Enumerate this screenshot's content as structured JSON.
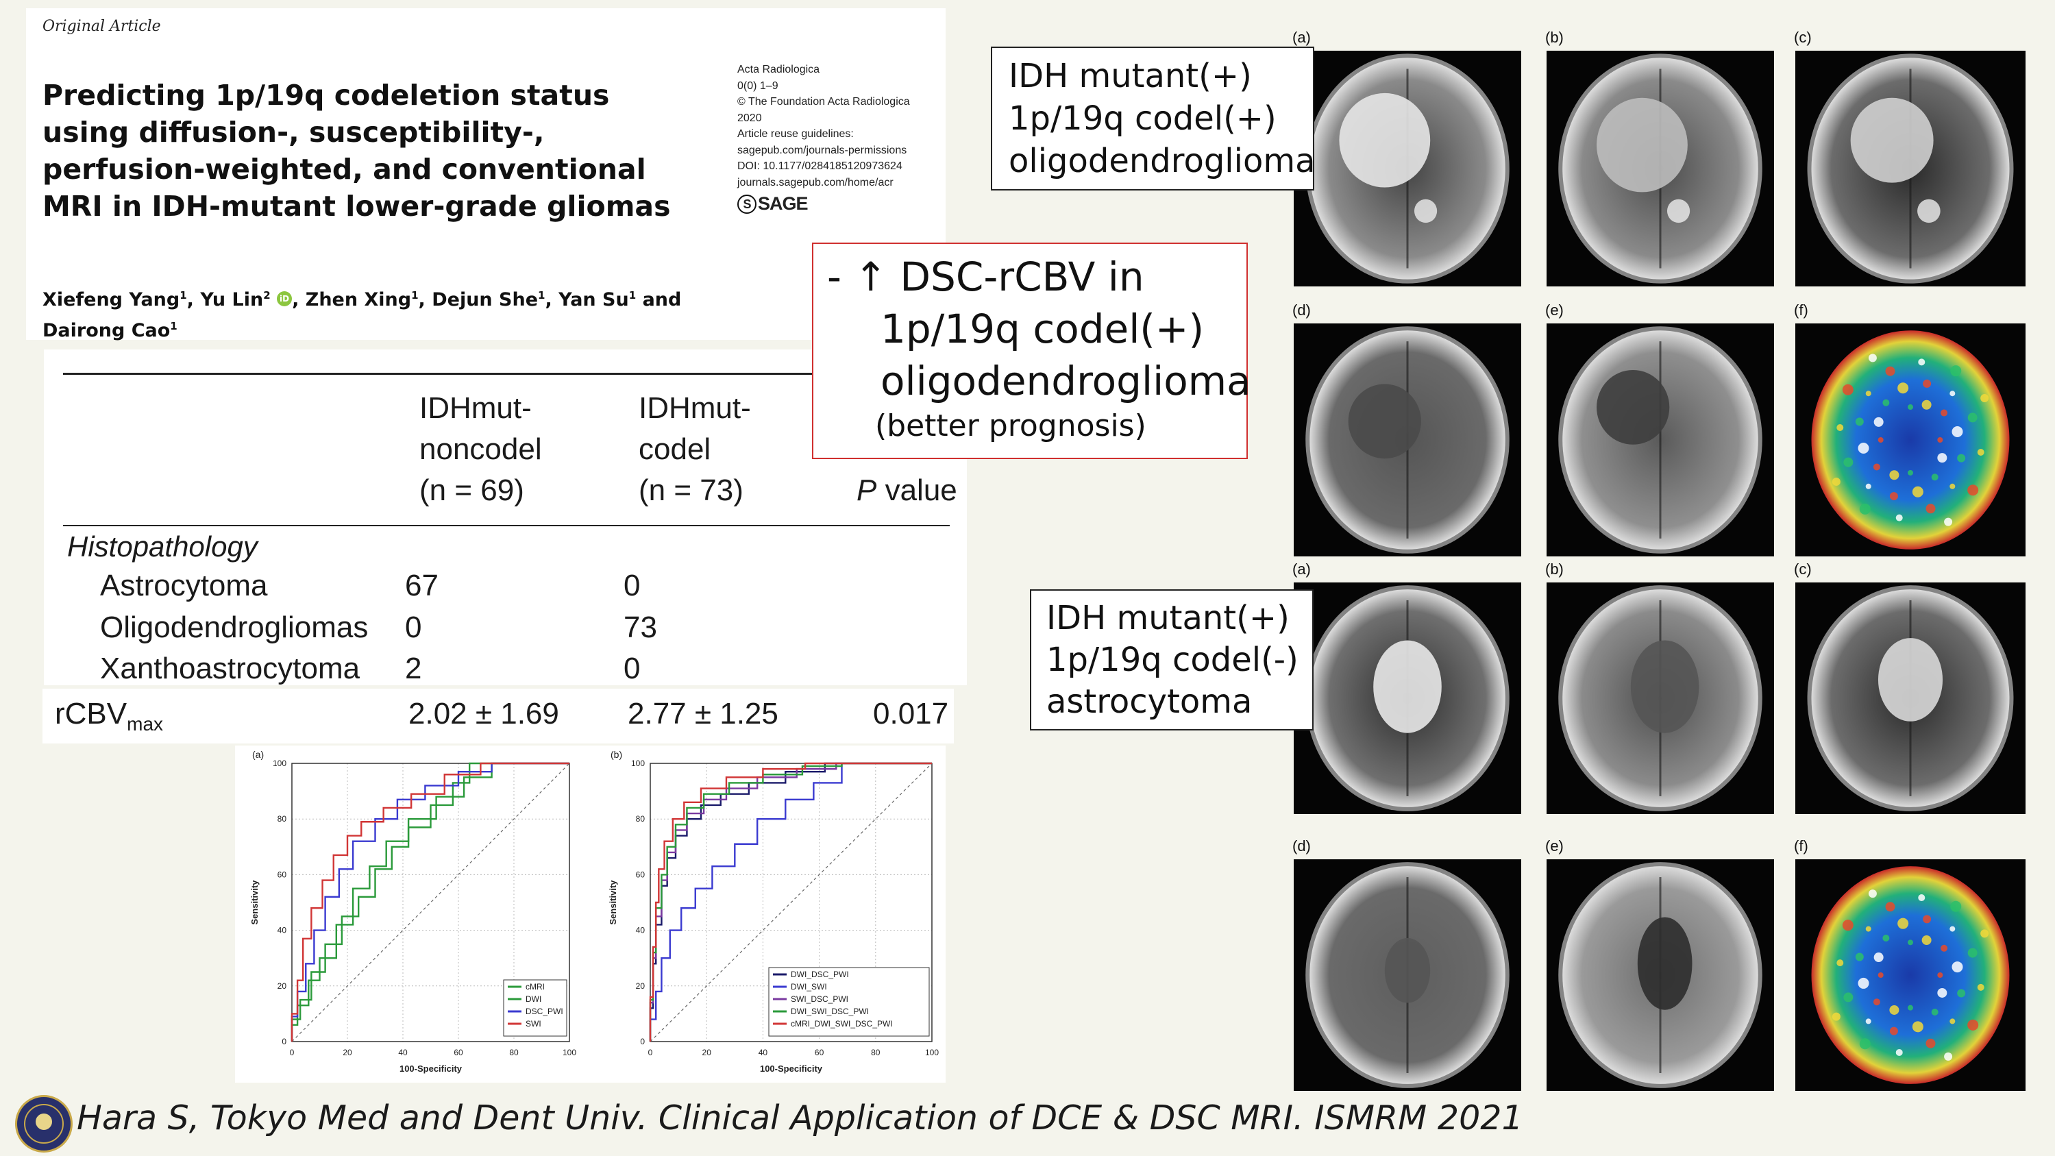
{
  "article": {
    "section_label": "Original Article",
    "title": "Predicting 1p/19q codeletion status using diffusion-, susceptibility-, perfusion-weighted, and conventional MRI in IDH-mutant lower-grade gliomas",
    "journal": [
      "Acta Radiologica",
      "0(0) 1–9",
      "© The Foundation Acta Radiologica",
      "2020",
      "Article reuse guidelines:",
      "sagepub.com/journals-permissions",
      "DOI: 10.1177/0284185120973624",
      "journals.sagepub.com/home/acr"
    ],
    "publisher": "SAGE",
    "authors": [
      {
        "name": "Xiefeng Yang",
        "sup": "1",
        "sep": ", "
      },
      {
        "name": "Yu Lin",
        "sup": "2",
        "sep": ", ",
        "orcid": true
      },
      {
        "name": "Zhen Xing",
        "sup": "1",
        "sep": ", "
      },
      {
        "name": "Dejun She",
        "sup": "1",
        "sep": ", "
      },
      {
        "name": "Yan Su",
        "sup": "1",
        "sep": " and "
      },
      {
        "name": "Dairong Cao",
        "sup": "1",
        "sep": ""
      }
    ]
  },
  "table": {
    "col1": [
      "IDHmut-",
      "noncodel",
      "(n = 69)"
    ],
    "col2": [
      "IDHmut-",
      "codel",
      "(n = 73)"
    ],
    "col3_italic": "P",
    "col3": " value",
    "section": "Histopathology",
    "rows": [
      {
        "label": "Astrocytoma",
        "a": "67",
        "b": "0"
      },
      {
        "label": "Oligodendrogliomas",
        "a": "0",
        "b": "73"
      },
      {
        "label": "Xanthoastrocytoma",
        "a": "2",
        "b": "0"
      }
    ],
    "rcbv": {
      "label": "rCBV",
      "sub": "max",
      "a": "2.02 ± 1.69",
      "b": "2.77 ± 1.25",
      "p": "0.017"
    }
  },
  "callouts": {
    "red": {
      "line1": "- ↑ DSC-rCBV in",
      "line2": "1p/19q codel(+)",
      "line3": "oligodendroglioma",
      "line4": "(better prognosis)"
    },
    "oligo": {
      "line1": "IDH mutant(+)",
      "line2": "1p/19q codel(+)",
      "line3": "oligodendroglioma"
    },
    "astro": {
      "line1": "IDH mutant(+)",
      "line2": "1p/19q codel(-)",
      "line3": "astrocytoma"
    }
  },
  "mri_panels": {
    "top_row1": [
      "(a)",
      "(b)",
      "(c)"
    ],
    "top_row2": [
      "(d)",
      "(e)",
      "(f)"
    ],
    "bot_row1": [
      "(a)",
      "(b)",
      "(c)"
    ],
    "bot_row2": [
      "(d)",
      "(e)",
      "(f)"
    ]
  },
  "chart_data": [
    {
      "type": "line",
      "panel_label": "(a)",
      "xlabel": "100-Specificity",
      "ylabel": "Sensitivity",
      "xlim": [
        0,
        100
      ],
      "ylim": [
        0,
        100
      ],
      "ticks": [
        0,
        20,
        40,
        60,
        80,
        100
      ],
      "grid": true,
      "legend_position": "bottom-right",
      "series": [
        {
          "name": "cMRI",
          "color": "#2a9a3a",
          "points": [
            [
              0,
              0
            ],
            [
              3,
              8
            ],
            [
              7,
              15
            ],
            [
              12,
              25
            ],
            [
              18,
              35
            ],
            [
              24,
              45
            ],
            [
              30,
              52
            ],
            [
              36,
              62
            ],
            [
              42,
              70
            ],
            [
              50,
              77
            ],
            [
              58,
              85
            ],
            [
              64,
              93
            ],
            [
              70,
              100
            ],
            [
              100,
              100
            ]
          ]
        },
        {
          "name": "DWI",
          "color": "#2a9a3a",
          "points": [
            [
              0,
              0
            ],
            [
              2,
              6
            ],
            [
              6,
              13
            ],
            [
              10,
              22
            ],
            [
              16,
              30
            ],
            [
              22,
              42
            ],
            [
              28,
              55
            ],
            [
              34,
              63
            ],
            [
              42,
              72
            ],
            [
              52,
              80
            ],
            [
              62,
              88
            ],
            [
              72,
              95
            ],
            [
              80,
              100
            ],
            [
              100,
              100
            ]
          ]
        },
        {
          "name": "DSC_PWI",
          "color": "#3a3ad0",
          "points": [
            [
              0,
              0
            ],
            [
              2,
              9
            ],
            [
              5,
              18
            ],
            [
              8,
              28
            ],
            [
              12,
              40
            ],
            [
              17,
              52
            ],
            [
              22,
              62
            ],
            [
              30,
              72
            ],
            [
              38,
              80
            ],
            [
              48,
              87
            ],
            [
              60,
              92
            ],
            [
              72,
              97
            ],
            [
              84,
              100
            ],
            [
              100,
              100
            ]
          ]
        },
        {
          "name": "SWI",
          "color": "#d13636",
          "points": [
            [
              0,
              0
            ],
            [
              2,
              10
            ],
            [
              4,
              22
            ],
            [
              7,
              37
            ],
            [
              11,
              48
            ],
            [
              15,
              58
            ],
            [
              20,
              67
            ],
            [
              25,
              74
            ],
            [
              33,
              79
            ],
            [
              43,
              84
            ],
            [
              55,
              89
            ],
            [
              68,
              96
            ],
            [
              78,
              100
            ],
            [
              100,
              100
            ]
          ]
        }
      ]
    },
    {
      "type": "line",
      "panel_label": "(b)",
      "xlabel": "100-Specificity",
      "ylabel": "Sensitivity",
      "xlim": [
        0,
        100
      ],
      "ylim": [
        0,
        100
      ],
      "ticks": [
        0,
        20,
        40,
        60,
        80,
        100
      ],
      "grid": true,
      "legend_position": "bottom-right",
      "series": [
        {
          "name": "DWI_DSC_PWI",
          "color": "#1a1a6a",
          "points": [
            [
              0,
              0
            ],
            [
              1,
              12
            ],
            [
              2,
              28
            ],
            [
              4,
              42
            ],
            [
              6,
              56
            ],
            [
              9,
              66
            ],
            [
              13,
              74
            ],
            [
              18,
              80
            ],
            [
              25,
              85
            ],
            [
              35,
              89
            ],
            [
              48,
              93
            ],
            [
              62,
              97
            ],
            [
              76,
              100
            ],
            [
              100,
              100
            ]
          ]
        },
        {
          "name": "DWI_SWI",
          "color": "#3a3ad0",
          "points": [
            [
              0,
              0
            ],
            [
              2,
              8
            ],
            [
              4,
              18
            ],
            [
              7,
              30
            ],
            [
              11,
              40
            ],
            [
              16,
              48
            ],
            [
              22,
              55
            ],
            [
              30,
              63
            ],
            [
              38,
              71
            ],
            [
              48,
              80
            ],
            [
              58,
              87
            ],
            [
              68,
              93
            ],
            [
              80,
              100
            ],
            [
              100,
              100
            ]
          ]
        },
        {
          "name": "SWI_DSC_PWI",
          "color": "#7a3aa0",
          "points": [
            [
              0,
              0
            ],
            [
              1,
              14
            ],
            [
              2,
              30
            ],
            [
              4,
              45
            ],
            [
              6,
              58
            ],
            [
              9,
              68
            ],
            [
              13,
              76
            ],
            [
              19,
              82
            ],
            [
              27,
              87
            ],
            [
              38,
              91
            ],
            [
              52,
              95
            ],
            [
              66,
              98
            ],
            [
              78,
              100
            ],
            [
              100,
              100
            ]
          ]
        },
        {
          "name": "DWI_SWI_DSC_PWI",
          "color": "#2a9a3a",
          "points": [
            [
              0,
              0
            ],
            [
              1,
              15
            ],
            [
              2,
              32
            ],
            [
              4,
              48
            ],
            [
              6,
              60
            ],
            [
              9,
              70
            ],
            [
              13,
              78
            ],
            [
              19,
              84
            ],
            [
              28,
              89
            ],
            [
              40,
              93
            ],
            [
              54,
              96
            ],
            [
              68,
              99
            ],
            [
              80,
              100
            ],
            [
              100,
              100
            ]
          ]
        },
        {
          "name": "cMRI_DWI_SWI_DSC_PWI",
          "color": "#d13636",
          "points": [
            [
              0,
              0
            ],
            [
              1,
              16
            ],
            [
              2,
              34
            ],
            [
              3,
              50
            ],
            [
              5,
              62
            ],
            [
              8,
              72
            ],
            [
              12,
              80
            ],
            [
              18,
              86
            ],
            [
              27,
              91
            ],
            [
              40,
              95
            ],
            [
              55,
              98
            ],
            [
              70,
              100
            ],
            [
              100,
              100
            ]
          ]
        }
      ]
    }
  ],
  "citation": "Hara S, Tokyo Med and Dent Univ. Clinical Application of DCE & DSC MRI. ISMRM 2021"
}
